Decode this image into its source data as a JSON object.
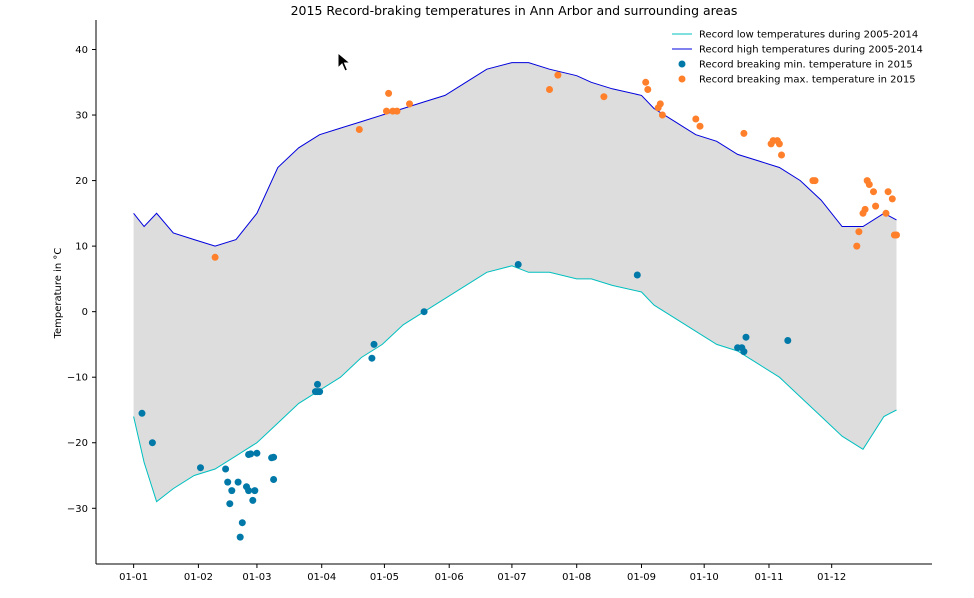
{
  "chart_data": {
    "type": "line",
    "title": "2015 Record-braking temperatures in Ann Arbor and surrounding areas",
    "xlabel": "",
    "ylabel": "Temperature in °C",
    "ylim": [
      -38.5,
      44.5
    ],
    "yticks": [
      -30,
      -20,
      -10,
      0,
      10,
      20,
      30,
      40
    ],
    "xticks": [
      "01-01",
      "01-02",
      "01-03",
      "01-04",
      "01-05",
      "01-06",
      "01-07",
      "01-08",
      "01-09",
      "01-10",
      "01-11",
      "01-12"
    ],
    "xtick_days": [
      1,
      32,
      60,
      91,
      121,
      152,
      182,
      213,
      244,
      274,
      305,
      335
    ],
    "xlim_days": [
      -17,
      383
    ],
    "grid": false,
    "legend_position": "top-right",
    "fill_between_color": "#dddddd",
    "series": [
      {
        "name": "Record low temperatures during 2005-2014",
        "kind": "line",
        "color": "#00bfbf",
        "days": [
          1,
          6,
          12,
          20,
          30,
          40,
          50,
          60,
          70,
          80,
          90,
          100,
          110,
          120,
          130,
          140,
          150,
          160,
          170,
          182,
          190,
          200,
          213,
          220,
          230,
          244,
          250,
          260,
          270,
          280,
          290,
          300,
          310,
          320,
          330,
          340,
          350,
          360,
          366
        ],
        "values": [
          -16,
          -23,
          -29,
          -27,
          -25,
          -24,
          -22,
          -20,
          -17,
          -14,
          -12,
          -10,
          -7,
          -5,
          -2,
          0,
          2,
          4,
          6,
          7,
          6,
          6,
          5,
          5,
          4,
          3,
          1,
          -1,
          -3,
          -5,
          -6,
          -8,
          -10,
          -13,
          -16,
          -19,
          -21,
          -16,
          -15
        ]
      },
      {
        "name": "Record high temperatures during 2005-2014",
        "kind": "line",
        "color": "#0000dd",
        "days": [
          1,
          6,
          12,
          20,
          30,
          40,
          50,
          60,
          70,
          80,
          90,
          100,
          110,
          120,
          130,
          140,
          150,
          160,
          170,
          182,
          190,
          200,
          213,
          220,
          230,
          244,
          250,
          260,
          270,
          280,
          290,
          300,
          310,
          320,
          330,
          340,
          350,
          360,
          366
        ],
        "values": [
          15,
          13,
          15,
          12,
          11,
          10,
          11,
          15,
          22,
          25,
          27,
          28,
          29,
          30,
          31,
          32,
          33,
          35,
          37,
          38,
          38,
          37,
          36,
          35,
          34,
          33,
          31,
          29,
          27,
          26,
          24,
          23,
          22,
          20,
          17,
          13,
          13,
          15,
          14
        ]
      },
      {
        "name": "Record breaking min. temperature in 2015",
        "kind": "scatter",
        "color": "#0079a8",
        "days": [
          5,
          10,
          33,
          45,
          46,
          47,
          48,
          51,
          52,
          53,
          55,
          56,
          56,
          57,
          58,
          59,
          60,
          67,
          68,
          68,
          88,
          89,
          89,
          90,
          115,
          116,
          140,
          185,
          242,
          290,
          292,
          293,
          294,
          314
        ],
        "values": [
          -15.5,
          -20,
          -23.8,
          -24,
          -26,
          -29.3,
          -27.3,
          -26,
          -34.4,
          -32.2,
          -26.7,
          -27.3,
          -21.8,
          -21.7,
          -28.8,
          -27.3,
          -21.6,
          -22.3,
          -25.6,
          -22.2,
          -12.2,
          -11.1,
          -12.2,
          -12.2,
          -7.1,
          -5,
          0,
          7.2,
          5.6,
          -5.5,
          -5.5,
          -6.1,
          -3.9,
          -4.4
        ]
      },
      {
        "name": "Record breaking max. temperature in 2015",
        "kind": "scatter",
        "color": "#ff7f2a",
        "days": [
          40,
          109,
          122,
          123,
          125,
          127,
          133,
          200,
          204,
          226,
          246,
          247,
          252,
          253,
          254,
          270,
          272,
          293,
          306,
          307,
          309,
          310,
          311,
          326,
          327,
          347,
          348,
          350,
          351,
          352,
          353,
          355,
          356,
          361,
          362,
          364,
          365,
          366
        ],
        "values": [
          8.3,
          27.8,
          30.6,
          33.3,
          30.6,
          30.6,
          31.7,
          33.9,
          36.1,
          32.8,
          35,
          33.9,
          31.1,
          31.7,
          30,
          29.4,
          28.3,
          27.2,
          25.6,
          26.1,
          26.1,
          25.6,
          23.9,
          20,
          20,
          10,
          12.2,
          15,
          15.6,
          20,
          19.4,
          18.3,
          16.1,
          15,
          18.3,
          17.2,
          11.7,
          11.7
        ]
      }
    ]
  }
}
